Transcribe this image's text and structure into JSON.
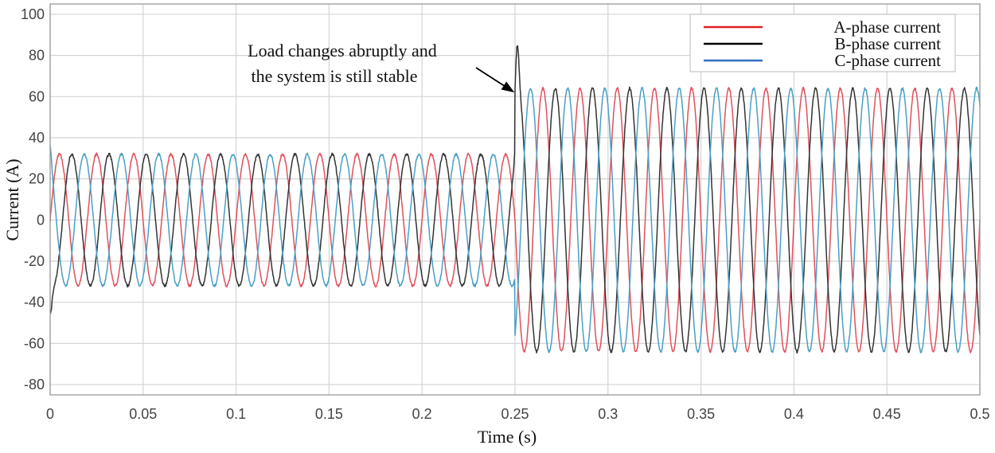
{
  "chart_data": {
    "type": "line",
    "xlabel": "Time (s)",
    "ylabel": "Current (A)",
    "xlim": [
      0,
      0.5
    ],
    "ylim": [
      -85,
      105
    ],
    "xticks": [
      0,
      0.05,
      0.1,
      0.15,
      0.2,
      0.25,
      0.3,
      0.35,
      0.4,
      0.45,
      0.5
    ],
    "xtick_labels": [
      "0",
      "0.05",
      "0.1",
      "0.15",
      "0.2",
      "0.25",
      "0.3",
      "0.35",
      "0.4",
      "0.45",
      "0.5"
    ],
    "yticks": [
      -80,
      -60,
      -40,
      -20,
      0,
      20,
      40,
      60,
      80,
      100
    ],
    "ytick_labels": [
      "-80",
      "-60",
      "-40",
      "-20",
      "0",
      "20",
      "40",
      "60",
      "80",
      "100"
    ],
    "grid": true,
    "legend_position": "top-right",
    "frequency_hz": 50,
    "load_step_time": 0.25,
    "series": [
      {
        "name": "A-phase current",
        "legend_color": "#e02020",
        "line_color": "#e0505c",
        "phase_deg": 0,
        "amplitude_before": 32,
        "amplitude_after": 64
      },
      {
        "name": "B-phase current",
        "legend_color": "#000000",
        "line_color": "#333333",
        "phase_deg": -120,
        "amplitude_before": 32,
        "amplitude_after": 64
      },
      {
        "name": "C-phase current",
        "legend_color": "#2f6dbf",
        "line_color": "#4a9fc4",
        "phase_deg": 120,
        "amplitude_before": 32,
        "amplitude_after": 64
      }
    ],
    "transients": [
      {
        "series": 1,
        "t": 0.0,
        "value": -45
      },
      {
        "series": 2,
        "t": 0.0,
        "value": 36
      },
      {
        "series": 1,
        "t": 0.2512,
        "value": 85
      },
      {
        "series": 2,
        "t": 0.2505,
        "value": -50
      }
    ],
    "annotation": {
      "lines": [
        "Load changes abruptly and",
        "the system  is still stable"
      ],
      "arrow_to": {
        "t": 0.2497,
        "value": 62
      }
    }
  }
}
